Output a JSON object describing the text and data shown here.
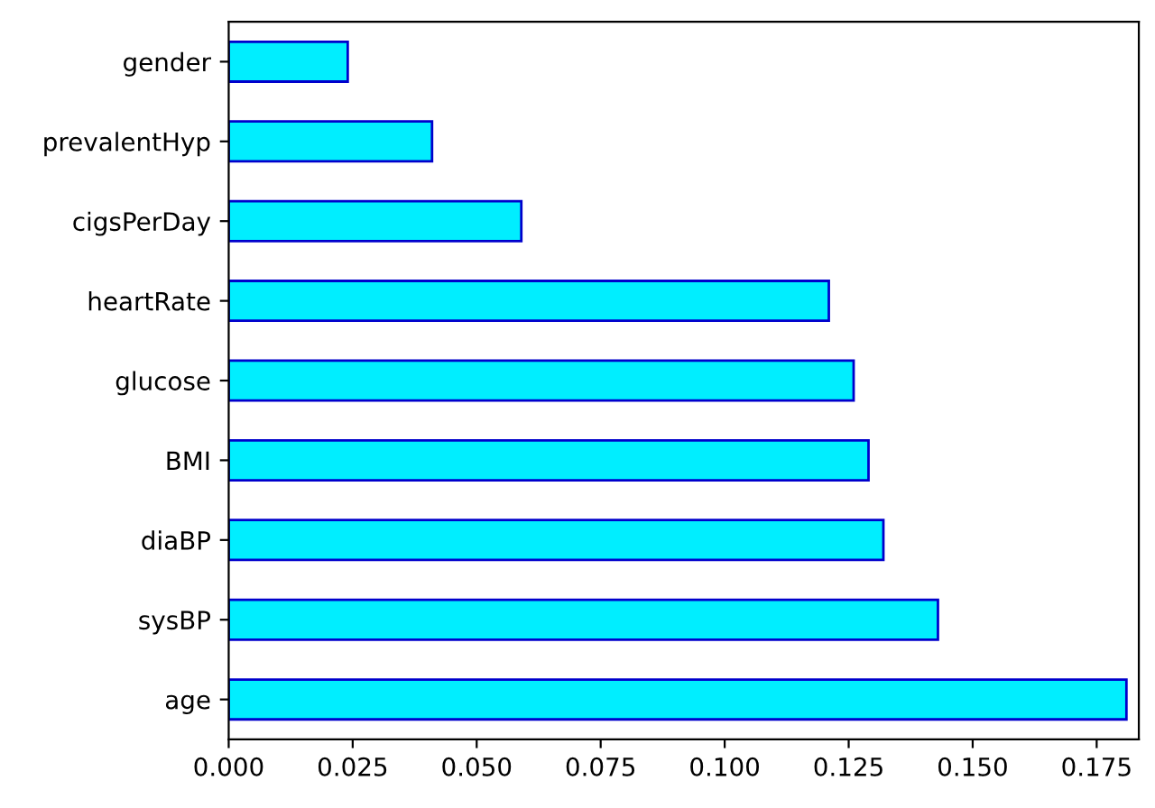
{
  "chart_data": {
    "type": "bar",
    "orientation": "horizontal",
    "categories": [
      "gender",
      "prevalentHyp",
      "cigsPerDay",
      "heartRate",
      "glucose",
      "BMI",
      "diaBP",
      "sysBP",
      "age"
    ],
    "values": [
      0.024,
      0.041,
      0.059,
      0.121,
      0.126,
      0.129,
      0.132,
      0.143,
      0.181
    ],
    "color": "#00eeff",
    "xlim": [
      0,
      0.1835
    ],
    "xticks": [
      {
        "value": 0,
        "label": "0.000"
      },
      {
        "value": 0.025,
        "label": "0.025"
      },
      {
        "value": 0.05,
        "label": "0.050"
      },
      {
        "value": 0.075,
        "label": "0.075"
      },
      {
        "value": 0.1,
        "label": "0.100"
      },
      {
        "value": 0.125,
        "label": "0.125"
      },
      {
        "value": 0.15,
        "label": "0.150"
      },
      {
        "value": 0.175,
        "label": "0.175"
      }
    ],
    "grid": false
  }
}
